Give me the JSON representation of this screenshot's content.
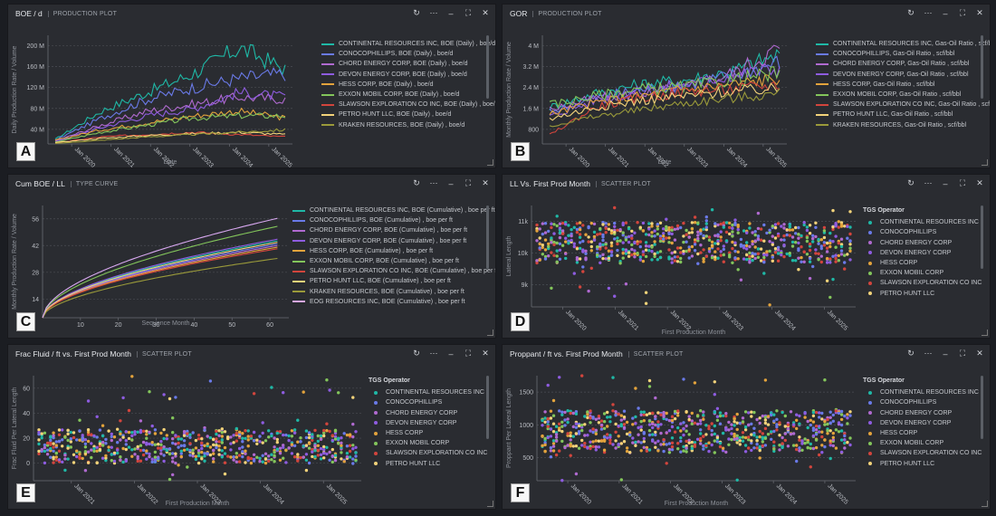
{
  "controls": {
    "refresh_icon": "↻",
    "more_icon": "⋯",
    "minimize_icon": "–",
    "expand_icon": "⛶",
    "close_icon": "✕"
  },
  "panels": [
    {
      "id": "A",
      "title": "BOE / d",
      "subtitle": "PRODUCTION PLOT",
      "badge": "A",
      "kind": "line",
      "ylabel": "Daily Production Rate / Volume",
      "xlabel": "Date",
      "yticks": [
        "200 M",
        "160 M",
        "120 M",
        "80 M",
        "40 M"
      ],
      "xticks": [
        "Jan 2020",
        "Jan 2021",
        "Jan 2022",
        "Jan 2023",
        "Jan 2024",
        "Jan 2025"
      ],
      "legend": [
        {
          "label": "CONTINENTAL RESOURCES INC, BOE (Daily) , boe/d",
          "color": "#1fb8a6"
        },
        {
          "label": "CONOCOPHILLIPS, BOE (Daily) , boe/d",
          "color": "#6a7ae8"
        },
        {
          "label": "CHORD ENERGY CORP, BOE (Daily) , boe/d",
          "color": "#b06ad0"
        },
        {
          "label": "DEVON ENERGY CORP, BOE (Daily) , boe/d",
          "color": "#8e5ce0"
        },
        {
          "label": "HESS CORP, BOE (Daily) , boe/d",
          "color": "#e3a33c"
        },
        {
          "label": "EXXON MOBIL CORP, BOE (Daily) , boe/d",
          "color": "#83c55b"
        },
        {
          "label": "SLAWSON EXPLORATION CO INC, BOE (Daily) , boe/d",
          "color": "#d2453d"
        },
        {
          "label": "PETRO HUNT LLC, BOE (Daily) , boe/d",
          "color": "#f3d37a"
        },
        {
          "label": "KRAKEN RESOURCES, BOE (Daily) , boe/d",
          "color": "#9a9a3a"
        }
      ]
    },
    {
      "id": "B",
      "title": "GOR",
      "subtitle": "PRODUCTION PLOT",
      "badge": "B",
      "kind": "line",
      "ylabel": "Monthly Production Rate / Volume",
      "xlabel": "Date",
      "yticks": [
        "4 M",
        "3.2 M",
        "2.4 M",
        "1.6 M",
        "800"
      ],
      "xticks": [
        "Jan 2020",
        "Jan 2021",
        "Jan 2022",
        "Jan 2023",
        "Jan 2024",
        "Jan 2025"
      ],
      "legend": [
        {
          "label": "CONTINENTAL RESOURCES INC, Gas-Oil Ratio , scf/bbl",
          "color": "#1fb8a6"
        },
        {
          "label": "CONOCOPHILLIPS, Gas-Oil Ratio , scf/bbl",
          "color": "#6a7ae8"
        },
        {
          "label": "CHORD ENERGY CORP, Gas-Oil Ratio , scf/bbl",
          "color": "#b06ad0"
        },
        {
          "label": "DEVON ENERGY CORP, Gas-Oil Ratio , scf/bbl",
          "color": "#8e5ce0"
        },
        {
          "label": "HESS CORP, Gas-Oil Ratio , scf/bbl",
          "color": "#e3a33c"
        },
        {
          "label": "EXXON MOBIL CORP, Gas-Oil Ratio , scf/bbl",
          "color": "#83c55b"
        },
        {
          "label": "SLAWSON EXPLORATION CO INC, Gas-Oil Ratio , scf/bbl",
          "color": "#d2453d"
        },
        {
          "label": "PETRO HUNT LLC, Gas-Oil Ratio , scf/bbl",
          "color": "#f3d37a"
        },
        {
          "label": "KRAKEN RESOURCES, Gas-Oil Ratio , scf/bbl",
          "color": "#9a9a3a"
        }
      ]
    },
    {
      "id": "C",
      "title": "Cum BOE / LL",
      "subtitle": "TYPE CURVE",
      "badge": "C",
      "kind": "curve",
      "ylabel": "Monthly Production Rate / Volume",
      "xlabel": "Sequence Month",
      "yticks": [
        "56",
        "42",
        "28",
        "14"
      ],
      "xticks": [
        "10",
        "20",
        "30",
        "40",
        "50",
        "60"
      ],
      "legend": [
        {
          "label": "CONTINENTAL RESOURCES INC, BOE (Cumulative) , boe per ft",
          "color": "#1fb8a6"
        },
        {
          "label": "CONOCOPHILLIPS, BOE (Cumulative) , boe per ft",
          "color": "#6a7ae8"
        },
        {
          "label": "CHORD ENERGY CORP, BOE (Cumulative) , boe per ft",
          "color": "#b06ad0"
        },
        {
          "label": "DEVON ENERGY CORP, BOE (Cumulative) , boe per ft",
          "color": "#8e5ce0"
        },
        {
          "label": "HESS CORP, BOE (Cumulative) , boe per ft",
          "color": "#e3a33c"
        },
        {
          "label": "EXXON MOBIL CORP, BOE (Cumulative) , boe per ft",
          "color": "#83c55b"
        },
        {
          "label": "SLAWSON EXPLORATION CO INC, BOE (Cumulative) , boe per ft",
          "color": "#d2453d"
        },
        {
          "label": "PETRO HUNT LLC, BOE (Cumulative) , boe per ft",
          "color": "#f3d37a"
        },
        {
          "label": "KRAKEN RESOURCES, BOE (Cumulative) , boe per ft",
          "color": "#9a9a3a"
        },
        {
          "label": "EOG RESOURCES INC, BOE (Cumulative) , boe per ft",
          "color": "#d8a8f0"
        }
      ],
      "finals": [
        48,
        46,
        45,
        49,
        44,
        57,
        43,
        47,
        37,
        62
      ]
    },
    {
      "id": "D",
      "title": "LL Vs. First Prod Month",
      "subtitle": "SCATTER PLOT",
      "badge": "D",
      "kind": "scatter",
      "ylabel": "Lateral Length",
      "xlabel": "First Production Month",
      "legend_title": "TGS Operator",
      "yticks": [
        "11k",
        "10k",
        "9k"
      ],
      "xticks": [
        "Jan 2020",
        "Jan 2021",
        "Jan 2022",
        "Jan 2023",
        "Jan 2024",
        "Jan 2025"
      ],
      "legend": [
        {
          "label": "CONTINENTAL RESOURCES INC",
          "color": "#1fb8a6"
        },
        {
          "label": "CONOCOPHILLIPS",
          "color": "#6a7ae8"
        },
        {
          "label": "CHORD ENERGY CORP",
          "color": "#b06ad0"
        },
        {
          "label": "DEVON ENERGY CORP",
          "color": "#8e5ce0"
        },
        {
          "label": "HESS CORP",
          "color": "#e3a33c"
        },
        {
          "label": "EXXON MOBIL CORP",
          "color": "#83c55b"
        },
        {
          "label": "SLAWSON EXPLORATION CO INC",
          "color": "#d2453d"
        },
        {
          "label": "PETRO HUNT LLC",
          "color": "#f3d37a"
        }
      ]
    },
    {
      "id": "E",
      "title": "Frac Fluid / ft vs. First Prod Month",
      "subtitle": "SCATTER PLOT",
      "badge": "E",
      "kind": "scatter",
      "ylabel": "Frac Fluid Per Lateral Length",
      "xlabel": "First Production Month",
      "legend_title": "TGS Operator",
      "yticks": [
        "60",
        "40",
        "20",
        "0"
      ],
      "xticks": [
        "Jan 2021",
        "Jan 2022",
        "Jan 2023",
        "Jan 2024",
        "Jan 2025"
      ],
      "legend": [
        {
          "label": "CONTINENTAL RESOURCES INC",
          "color": "#1fb8a6"
        },
        {
          "label": "CONOCOPHILLIPS",
          "color": "#6a7ae8"
        },
        {
          "label": "CHORD ENERGY CORP",
          "color": "#b06ad0"
        },
        {
          "label": "DEVON ENERGY CORP",
          "color": "#8e5ce0"
        },
        {
          "label": "HESS CORP",
          "color": "#e3a33c"
        },
        {
          "label": "EXXON MOBIL CORP",
          "color": "#83c55b"
        },
        {
          "label": "SLAWSON EXPLORATION CO INC",
          "color": "#d2453d"
        },
        {
          "label": "PETRO HUNT LLC",
          "color": "#f3d37a"
        }
      ]
    },
    {
      "id": "F",
      "title": "Proppant / ft vs. First Prod Month",
      "subtitle": "SCATTER PLOT",
      "badge": "F",
      "kind": "scatter",
      "ylabel": "Proppant Per Lateral Length",
      "xlabel": "First Production Month",
      "legend_title": "TGS Operator",
      "yticks": [
        "1500",
        "1000",
        "500"
      ],
      "xticks": [
        "Jan 2020",
        "Jan 2021",
        "Jan 2022",
        "Jan 2023",
        "Jan 2024",
        "Jan 2025"
      ],
      "legend": [
        {
          "label": "CONTINENTAL RESOURCES INC",
          "color": "#1fb8a6"
        },
        {
          "label": "CONOCOPHILLIPS",
          "color": "#6a7ae8"
        },
        {
          "label": "CHORD ENERGY CORP",
          "color": "#b06ad0"
        },
        {
          "label": "DEVON ENERGY CORP",
          "color": "#8e5ce0"
        },
        {
          "label": "HESS CORP",
          "color": "#e3a33c"
        },
        {
          "label": "EXXON MOBIL CORP",
          "color": "#83c55b"
        },
        {
          "label": "SLAWSON EXPLORATION CO INC",
          "color": "#d2453d"
        },
        {
          "label": "PETRO HUNT LLC",
          "color": "#f3d37a"
        }
      ]
    }
  ],
  "chart_data": [
    {
      "type": "line",
      "title": "BOE / d",
      "xlabel": "Date",
      "ylabel": "Daily Production Rate / Volume",
      "ylim": [
        0,
        220
      ],
      "categories": [
        "Jan 2020",
        "Jan 2021",
        "Jan 2022",
        "Jan 2023",
        "Jan 2024",
        "Jan 2025"
      ],
      "series": [
        {
          "name": "CONTINENTAL RESOURCES INC",
          "values": [
            10,
            70,
            110,
            150,
            205,
            160
          ]
        },
        {
          "name": "CONOCOPHILLIPS",
          "values": [
            8,
            55,
            95,
            120,
            140,
            150
          ]
        },
        {
          "name": "CHORD ENERGY CORP",
          "values": [
            6,
            40,
            70,
            85,
            100,
            95
          ]
        },
        {
          "name": "DEVON ENERGY CORP",
          "values": [
            5,
            35,
            60,
            75,
            110,
            100
          ]
        },
        {
          "name": "HESS CORP",
          "values": [
            8,
            30,
            45,
            60,
            70,
            55
          ]
        },
        {
          "name": "EXXON MOBIL CORP",
          "values": [
            4,
            25,
            40,
            55,
            60,
            60
          ]
        },
        {
          "name": "SLAWSON EXPLORATION CO INC",
          "values": [
            2,
            15,
            20,
            25,
            20,
            15
          ]
        },
        {
          "name": "PETRO HUNT LLC",
          "values": [
            3,
            12,
            18,
            22,
            25,
            20
          ]
        },
        {
          "name": "KRAKEN RESOURCES",
          "values": [
            1,
            8,
            15,
            20,
            25,
            30
          ]
        }
      ]
    },
    {
      "type": "line",
      "title": "GOR",
      "xlabel": "Date",
      "ylabel": "Monthly Production Rate / Volume",
      "ylim": [
        0,
        4.5
      ],
      "categories": [
        "Jan 2020",
        "Jan 2021",
        "Jan 2022",
        "Jan 2023",
        "Jan 2024",
        "Jan 2025"
      ],
      "series": [
        {
          "name": "CONTINENTAL RESOURCES INC",
          "values": [
            1.6,
            2.2,
            2.6,
            2.8,
            3.2,
            3.9
          ]
        },
        {
          "name": "CONOCOPHILLIPS",
          "values": [
            1.4,
            2.0,
            2.4,
            2.6,
            3.0,
            3.6
          ]
        },
        {
          "name": "CHORD ENERGY CORP",
          "values": [
            1.5,
            2.0,
            2.2,
            2.5,
            3.1,
            4.2
          ]
        },
        {
          "name": "DEVON ENERGY CORP",
          "values": [
            1.2,
            1.9,
            2.3,
            2.6,
            3.0,
            3.3
          ]
        },
        {
          "name": "HESS CORP",
          "values": [
            1.3,
            1.8,
            2.1,
            2.4,
            2.6,
            2.9
          ]
        },
        {
          "name": "EXXON MOBIL CORP",
          "values": [
            1.7,
            2.1,
            2.4,
            2.5,
            2.8,
            3.1
          ]
        },
        {
          "name": "SLAWSON EXPLORATION CO INC",
          "values": [
            0.4,
            1.6,
            2.0,
            2.3,
            2.4,
            2.6
          ]
        },
        {
          "name": "PETRO HUNT LLC",
          "values": [
            1.1,
            1.6,
            1.9,
            2.1,
            2.3,
            2.4
          ]
        },
        {
          "name": "KRAKEN RESOURCES",
          "values": [
            0.8,
            1.2,
            1.5,
            1.8,
            2.0,
            2.2
          ]
        }
      ]
    },
    {
      "type": "line",
      "title": "Cum BOE / LL",
      "xlabel": "Sequence Month",
      "ylabel": "Monthly Production Rate / Volume",
      "xlim": [
        0,
        65
      ],
      "ylim": [
        0,
        70
      ],
      "x": [
        10,
        20,
        30,
        40,
        50,
        60
      ],
      "series": [
        {
          "name": "CONTINENTAL RESOURCES INC",
          "values": [
            21,
            30,
            36,
            41,
            45,
            48
          ]
        },
        {
          "name": "CONOCOPHILLIPS",
          "values": [
            20,
            29,
            35,
            40,
            44,
            46
          ]
        },
        {
          "name": "CHORD ENERGY CORP",
          "values": [
            19,
            28,
            34,
            39,
            43,
            45
          ]
        },
        {
          "name": "DEVON ENERGY CORP",
          "values": [
            21,
            31,
            37,
            42,
            46,
            49
          ]
        },
        {
          "name": "HESS CORP",
          "values": [
            18,
            27,
            33,
            38,
            42,
            44
          ]
        },
        {
          "name": "EXXON MOBIL CORP",
          "values": [
            24,
            35,
            43,
            49,
            54,
            57
          ]
        },
        {
          "name": "SLAWSON EXPLORATION CO INC",
          "values": [
            18,
            26,
            32,
            37,
            41,
            43
          ]
        },
        {
          "name": "PETRO HUNT LLC",
          "values": [
            13,
            23,
            31,
            37,
            43,
            47
          ]
        },
        {
          "name": "KRAKEN RESOURCES",
          "values": [
            15,
            22,
            27,
            31,
            34,
            37
          ]
        },
        {
          "name": "EOG RESOURCES INC",
          "values": [
            28,
            41,
            50,
            56,
            60,
            62
          ]
        }
      ]
    },
    {
      "type": "scatter",
      "title": "LL Vs. First Prod Month",
      "xlabel": "First Production Month",
      "ylabel": "Lateral Length",
      "ylim": [
        8500,
        11500
      ],
      "categories": [
        "Jan 2020",
        "Jan 2021",
        "Jan 2022",
        "Jan 2023",
        "Jan 2024",
        "Jan 2025"
      ],
      "typical_range": [
        9800,
        11000
      ]
    },
    {
      "type": "scatter",
      "title": "Frac Fluid / ft vs. First Prod Month",
      "xlabel": "First Production Month",
      "ylabel": "Frac Fluid Per Lateral Length",
      "ylim": [
        0,
        72
      ],
      "categories": [
        "Jan 2021",
        "Jan 2022",
        "Jan 2023",
        "Jan 2024",
        "Jan 2025"
      ],
      "typical_range": [
        12,
        35
      ]
    },
    {
      "type": "scatter",
      "title": "Proppant / ft vs. First Prod Month",
      "xlabel": "First Production Month",
      "ylabel": "Proppant Per Lateral Length",
      "ylim": [
        300,
        1800
      ],
      "categories": [
        "Jan 2020",
        "Jan 2021",
        "Jan 2022",
        "Jan 2023",
        "Jan 2024",
        "Jan 2025"
      ],
      "typical_range": [
        700,
        1300
      ]
    }
  ]
}
